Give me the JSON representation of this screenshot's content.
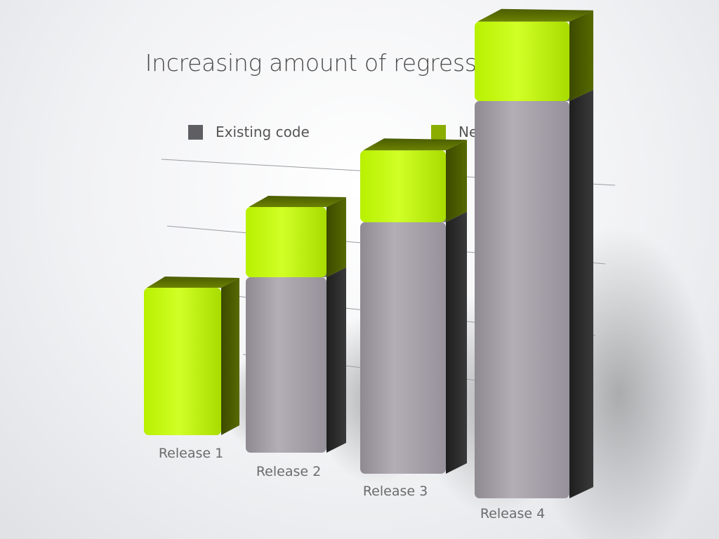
{
  "title": "Increasing amount of regression tests",
  "legend": {
    "existing": "Existing code",
    "new": "New code"
  },
  "colors": {
    "existing": "#5f5f63",
    "new": "#8aad00",
    "existing_bar": "#a39ea6",
    "new_bar": "#c9ff1a",
    "new_bar_dark": "#5c7000"
  },
  "chart_data": {
    "type": "bar",
    "stacked": true,
    "three_d": true,
    "categories": [
      "Release 1",
      "Release 2",
      "Release 3",
      "Release 4"
    ],
    "series": [
      {
        "name": "Existing code",
        "values": [
          0,
          1.0,
          1.4,
          2.0
        ]
      },
      {
        "name": "New code",
        "values": [
          1.0,
          0.4,
          0.4,
          0.4
        ]
      }
    ],
    "ylim": [
      0,
      3
    ],
    "grid": true,
    "legend_position": "top"
  }
}
